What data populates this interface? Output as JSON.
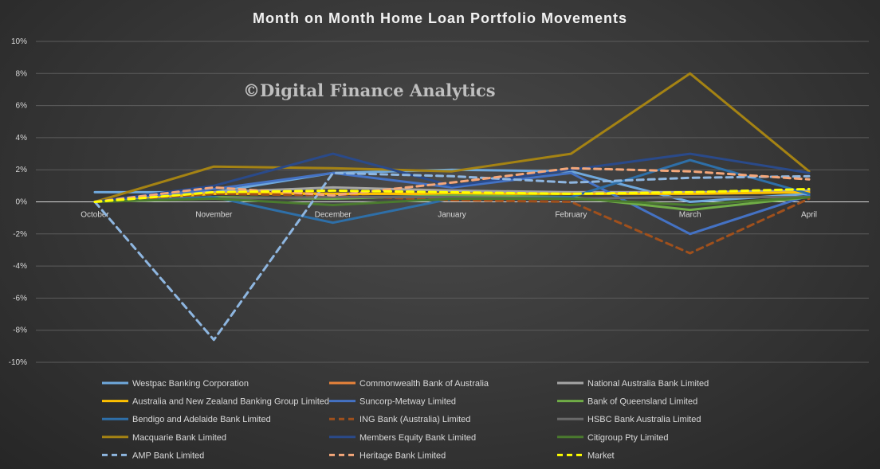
{
  "chart_data": {
    "type": "line",
    "title": "Month on Month Home Loan Portfolio Movements",
    "watermark": "©Digital Finance Analytics",
    "xlabel": "",
    "ylabel": "",
    "categories": [
      "October",
      "November",
      "December",
      "January",
      "February",
      "March",
      "April"
    ],
    "ylim": [
      -10,
      10
    ],
    "yticks": [
      -10,
      -8,
      -6,
      -4,
      -2,
      0,
      2,
      4,
      6,
      8,
      10
    ],
    "ytick_labels": [
      "-10%",
      "-8%",
      "-6%",
      "-4%",
      "-2%",
      "0%",
      "2%",
      "4%",
      "6%",
      "8%",
      "10%"
    ],
    "grid": true,
    "legend_position": "bottom",
    "series": [
      {
        "name": "Westpac Banking Corporation",
        "color": "#6fa8dc",
        "dash": false,
        "values": [
          0.6,
          0.6,
          1.8,
          2.0,
          1.9,
          0.0,
          0.5
        ]
      },
      {
        "name": "Commonwealth Bank of Australia",
        "color": "#e8833a",
        "dash": false,
        "values": [
          0.0,
          0.6,
          0.5,
          0.5,
          0.6,
          0.6,
          0.6
        ]
      },
      {
        "name": "National Australia Bank Limited",
        "color": "#a5a5a5",
        "dash": false,
        "values": [
          0.0,
          0.6,
          0.9,
          0.7,
          0.6,
          0.6,
          0.7
        ]
      },
      {
        "name": "Australia and New Zealand Banking Group Limited",
        "color": "#ffc000",
        "dash": false,
        "values": [
          0.0,
          0.5,
          0.5,
          0.5,
          0.5,
          0.5,
          0.6
        ]
      },
      {
        "name": "Suncorp-Metway Limited",
        "color": "#4472c4",
        "dash": false,
        "values": [
          0.0,
          0.8,
          1.8,
          0.9,
          1.8,
          -2.0,
          0.4
        ]
      },
      {
        "name": "Bank of Queensland Limited",
        "color": "#70ad47",
        "dash": false,
        "values": [
          0.0,
          0.3,
          0.2,
          0.4,
          0.3,
          -0.5,
          0.3
        ]
      },
      {
        "name": "Bendigo and Adelaide Bank Limited",
        "color": "#2e6fa8",
        "dash": false,
        "values": [
          0.0,
          0.3,
          -1.3,
          0.2,
          0.3,
          2.6,
          0.5
        ]
      },
      {
        "name": "ING Bank (Australia) Limited",
        "color": "#a0501c",
        "dash": true,
        "values": [
          0.0,
          0.5,
          0.4,
          0.1,
          0.0,
          -3.2,
          0.2
        ]
      },
      {
        "name": "HSBC Bank Australia Limited",
        "color": "#6a6a6a",
        "dash": false,
        "values": [
          0.0,
          0.2,
          0.3,
          0.3,
          0.2,
          0.3,
          0.3
        ]
      },
      {
        "name": "Macquarie Bank Limited",
        "color": "#a58313",
        "dash": false,
        "values": [
          0.0,
          2.2,
          2.1,
          1.9,
          3.0,
          8.0,
          1.9
        ]
      },
      {
        "name": "Members Equity Bank Limited",
        "color": "#2a4a8a",
        "dash": false,
        "values": [
          0.0,
          1.0,
          3.0,
          1.0,
          2.0,
          3.0,
          1.8
        ]
      },
      {
        "name": "Citigroup Pty Limited",
        "color": "#4a7a2e",
        "dash": false,
        "values": [
          0.0,
          0.2,
          -0.2,
          0.2,
          0.2,
          -0.2,
          0.3
        ]
      },
      {
        "name": "AMP Bank Limited",
        "color": "#8eb6e0",
        "dash": true,
        "values": [
          0.0,
          -8.6,
          1.8,
          1.6,
          1.2,
          1.5,
          1.6
        ]
      },
      {
        "name": "Heritage Bank Limited",
        "color": "#f4a77a",
        "dash": true,
        "values": [
          0.0,
          0.9,
          0.4,
          1.2,
          2.1,
          1.9,
          1.4
        ]
      },
      {
        "name": "Market",
        "color": "#ffff00",
        "dash": true,
        "values": [
          0.0,
          0.6,
          0.7,
          0.6,
          0.5,
          0.6,
          0.8
        ]
      }
    ]
  }
}
